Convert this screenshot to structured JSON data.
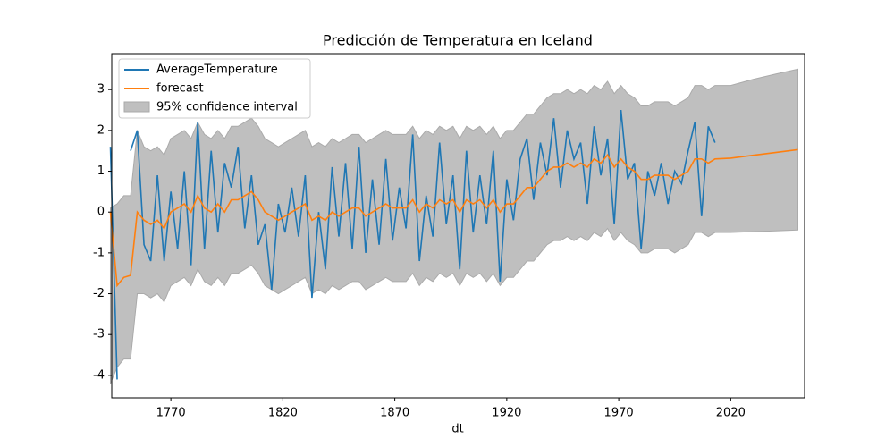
{
  "chart_data": {
    "type": "line",
    "title": "Predicción de Temperatura en Iceland",
    "xlabel": "dt",
    "x": [
      1743,
      1746,
      1749,
      1752,
      1755,
      1758,
      1761,
      1764,
      1767,
      1770,
      1773,
      1776,
      1779,
      1782,
      1785,
      1788,
      1791,
      1794,
      1797,
      1800,
      1803,
      1806,
      1809,
      1812,
      1815,
      1818,
      1821,
      1824,
      1827,
      1830,
      1833,
      1836,
      1839,
      1842,
      1845,
      1848,
      1851,
      1854,
      1857,
      1860,
      1863,
      1866,
      1869,
      1872,
      1875,
      1878,
      1881,
      1884,
      1887,
      1890,
      1893,
      1896,
      1899,
      1902,
      1905,
      1908,
      1911,
      1914,
      1917,
      1920,
      1923,
      1926,
      1929,
      1932,
      1935,
      1938,
      1941,
      1944,
      1947,
      1950,
      1953,
      1956,
      1959,
      1962,
      1965,
      1968,
      1971,
      1974,
      1977,
      1980,
      1983,
      1986,
      1989,
      1992,
      1995,
      1998,
      2001,
      2004,
      2007,
      2010,
      2013,
      2020,
      2030,
      2040,
      2050
    ],
    "series": [
      {
        "name": "AverageTemperature",
        "color": "#1f77b4",
        "values": [
          1.6,
          -4.1,
          null,
          1.5,
          2.0,
          -0.8,
          -1.2,
          0.9,
          -1.2,
          0.5,
          -0.9,
          1.0,
          -1.3,
          2.2,
          -0.9,
          1.5,
          -0.5,
          1.2,
          0.6,
          1.6,
          -0.4,
          0.9,
          -0.8,
          -0.3,
          -1.9,
          0.2,
          -0.5,
          0.6,
          -0.6,
          0.9,
          -2.1,
          0.0,
          -1.4,
          1.1,
          -0.6,
          1.2,
          -0.9,
          1.6,
          -1.0,
          0.8,
          -0.8,
          1.3,
          -0.7,
          0.6,
          -0.4,
          1.9,
          -1.2,
          0.4,
          -0.6,
          1.7,
          -0.3,
          0.9,
          -1.4,
          1.5,
          -0.5,
          0.9,
          -0.3,
          1.5,
          -1.7,
          0.8,
          -0.2,
          1.3,
          1.8,
          0.3,
          1.7,
          0.9,
          2.3,
          0.6,
          2.0,
          1.3,
          1.7,
          0.2,
          2.1,
          0.9,
          1.8,
          -0.3,
          2.5,
          0.8,
          1.2,
          -0.9,
          1.0,
          0.4,
          1.2,
          0.2,
          1.0,
          0.7,
          1.5,
          2.2,
          -0.1,
          2.1,
          1.7,
          null,
          null,
          null,
          null
        ]
      },
      {
        "name": "forecast",
        "color": "#ff7f0e",
        "values": [
          0.0,
          -1.8,
          -1.6,
          -1.55,
          0.0,
          -0.2,
          -0.3,
          -0.2,
          -0.4,
          0.0,
          0.1,
          0.2,
          0.0,
          0.4,
          0.1,
          0.0,
          0.2,
          0.0,
          0.3,
          0.3,
          0.4,
          0.5,
          0.3,
          0.0,
          -0.1,
          -0.2,
          -0.1,
          0.0,
          0.1,
          0.2,
          -0.2,
          -0.1,
          -0.2,
          0.0,
          -0.1,
          0.0,
          0.1,
          0.1,
          -0.1,
          0.0,
          0.1,
          0.2,
          0.1,
          0.1,
          0.1,
          0.3,
          0.0,
          0.2,
          0.1,
          0.3,
          0.2,
          0.3,
          0.0,
          0.3,
          0.2,
          0.3,
          0.1,
          0.3,
          0.0,
          0.2,
          0.2,
          0.4,
          0.6,
          0.6,
          0.8,
          1.0,
          1.1,
          1.1,
          1.2,
          1.1,
          1.2,
          1.1,
          1.3,
          1.2,
          1.4,
          1.1,
          1.3,
          1.1,
          1.0,
          0.8,
          0.8,
          0.9,
          0.9,
          0.9,
          0.8,
          0.9,
          1.0,
          1.3,
          1.3,
          1.2,
          1.3,
          1.32,
          1.39,
          1.46,
          1.53
        ]
      }
    ],
    "confidence_band": {
      "name": "95% confidence interval",
      "color": "#bfbfbf",
      "lower": [
        -4.2,
        -3.8,
        -3.6,
        -3.6,
        -2.0,
        -2.0,
        -2.1,
        -2.0,
        -2.2,
        -1.8,
        -1.7,
        -1.6,
        -1.8,
        -1.4,
        -1.7,
        -1.8,
        -1.6,
        -1.8,
        -1.5,
        -1.5,
        -1.4,
        -1.3,
        -1.5,
        -1.8,
        -1.9,
        -2.0,
        -1.9,
        -1.8,
        -1.7,
        -1.6,
        -2.0,
        -1.9,
        -2.0,
        -1.8,
        -1.9,
        -1.8,
        -1.7,
        -1.7,
        -1.9,
        -1.8,
        -1.7,
        -1.6,
        -1.7,
        -1.7,
        -1.7,
        -1.5,
        -1.8,
        -1.6,
        -1.7,
        -1.5,
        -1.6,
        -1.5,
        -1.8,
        -1.5,
        -1.6,
        -1.5,
        -1.7,
        -1.5,
        -1.8,
        -1.6,
        -1.6,
        -1.4,
        -1.2,
        -1.2,
        -1.0,
        -0.8,
        -0.7,
        -0.7,
        -0.6,
        -0.7,
        -0.6,
        -0.7,
        -0.5,
        -0.6,
        -0.4,
        -0.7,
        -0.5,
        -0.7,
        -0.8,
        -1.0,
        -1.0,
        -0.9,
        -0.9,
        -0.9,
        -1.0,
        -0.9,
        -0.8,
        -0.5,
        -0.5,
        -0.6,
        -0.5,
        -0.5,
        -0.48,
        -0.46,
        -0.44
      ],
      "upper": [
        0.1,
        0.2,
        0.4,
        0.4,
        2.0,
        1.6,
        1.5,
        1.6,
        1.4,
        1.8,
        1.9,
        2.0,
        1.8,
        2.2,
        1.9,
        1.8,
        2.0,
        1.8,
        2.1,
        2.1,
        2.2,
        2.3,
        2.1,
        1.8,
        1.7,
        1.6,
        1.7,
        1.8,
        1.9,
        2.0,
        1.6,
        1.7,
        1.6,
        1.8,
        1.7,
        1.8,
        1.9,
        1.9,
        1.7,
        1.8,
        1.9,
        2.0,
        1.9,
        1.9,
        1.9,
        2.1,
        1.8,
        2.0,
        1.9,
        2.1,
        2.0,
        2.1,
        1.8,
        2.1,
        2.0,
        2.1,
        1.9,
        2.1,
        1.8,
        2.0,
        2.0,
        2.2,
        2.4,
        2.4,
        2.6,
        2.8,
        2.9,
        2.9,
        3.0,
        2.9,
        3.0,
        2.9,
        3.1,
        3.0,
        3.2,
        2.9,
        3.1,
        2.9,
        2.8,
        2.6,
        2.6,
        2.7,
        2.7,
        2.7,
        2.6,
        2.7,
        2.8,
        3.1,
        3.1,
        3.0,
        3.1,
        3.1,
        3.25,
        3.38,
        3.5
      ]
    },
    "xlim": [
      1743.6,
      2053
    ],
    "ylim": [
      -4.55,
      3.88
    ],
    "xticks": [
      1770,
      1820,
      1870,
      1920,
      1970,
      2020
    ],
    "yticks": [
      -4,
      -3,
      -2,
      -1,
      0,
      1,
      2,
      3
    ],
    "legend": "upper left"
  }
}
